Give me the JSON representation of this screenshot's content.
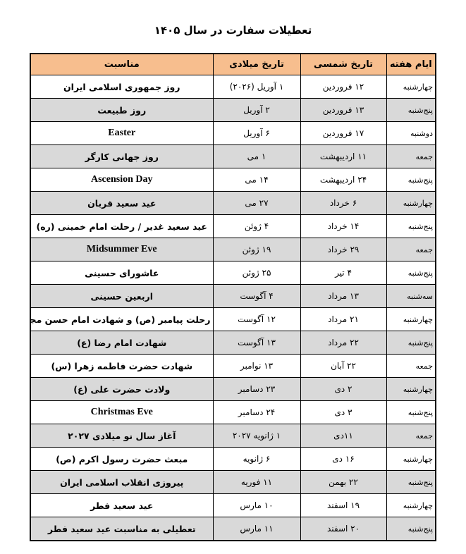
{
  "title": "تعطیلات سفارت در سال ۱۴۰۵",
  "columns": {
    "weekday": "ایام هفته",
    "shamsi": "تاریخ شمسی",
    "miladi": "تاریخ میلادی",
    "occasion": "مناسبت"
  },
  "header_color": "#f7be8e",
  "stripe_color": "#d9d9d9",
  "rows": [
    {
      "weekday": "چهارشنبه",
      "shamsi": "۱۲ فروردین",
      "miladi": "۱ آوریل (۲۰۲۶)",
      "occasion": "روز جمهوری اسلامی ایران"
    },
    {
      "weekday": "پنج‌شنبه",
      "shamsi": "۱۳ فروردین",
      "miladi": "۲ آوریل",
      "occasion": "روز طبیعت"
    },
    {
      "weekday": "دوشنبه",
      "shamsi": "۱۷ فروردین",
      "miladi": "۶ آوریل",
      "occasion": "Easter"
    },
    {
      "weekday": "جمعه",
      "shamsi": "۱۱ اردیبهشت",
      "miladi": "۱ می",
      "occasion": "روز جهانی کارگر"
    },
    {
      "weekday": "پنج‌شنبه",
      "shamsi": "۲۴ اردیبهشت",
      "miladi": "۱۴ می",
      "occasion": "Ascension Day"
    },
    {
      "weekday": "چهارشنبه",
      "shamsi": "۶ خرداد",
      "miladi": "۲۷ می",
      "occasion": "عید سعید قربان"
    },
    {
      "weekday": "پنج‌شنبه",
      "shamsi": "۱۴ خرداد",
      "miladi": "۴ ژوئن",
      "occasion": "عید سعید غدیر / رحلت امام خمینی (ره)"
    },
    {
      "weekday": "جمعه",
      "shamsi": "۲۹ خرداد",
      "miladi": "۱۹ ژوئن",
      "occasion": "Midsummer Eve"
    },
    {
      "weekday": "پنج‌شنبه",
      "shamsi": "۴ تیر",
      "miladi": "۲۵ ژوئن",
      "occasion": "عاشورای حسینی"
    },
    {
      "weekday": "سه‌شنبه",
      "shamsi": "۱۳ مرداد",
      "miladi": "۴ آگوست",
      "occasion": "اربعین حسینی"
    },
    {
      "weekday": "چهارشنبه",
      "shamsi": "۲۱ مرداد",
      "miladi": "۱۲ آگوست",
      "occasion": "رحلت پیامبر (ص) و شهادت امام حسن مجتبی (ع)"
    },
    {
      "weekday": "پنج‌شنبه",
      "shamsi": "۲۲ مرداد",
      "miladi": "۱۳ آگوست",
      "occasion": "شهادت امام رضا (ع)"
    },
    {
      "weekday": "جمعه",
      "shamsi": "۲۲ آبان",
      "miladi": "۱۳ نوامبر",
      "occasion": "شهادت حضرت فاطمه زهرا (س)"
    },
    {
      "weekday": "چهارشنبه",
      "shamsi": "۲ دی",
      "miladi": "۲۳ دسامبر",
      "occasion": "ولادت حضرت علی (ع)"
    },
    {
      "weekday": "پنج‌شنبه",
      "shamsi": "۳ دی",
      "miladi": "۲۴ دسامبر",
      "occasion": "Christmas Eve"
    },
    {
      "weekday": "جمعه",
      "shamsi": "۱۱دی",
      "miladi": "۱ ژانویه ۲۰۲۷",
      "occasion": "آغاز سال نو میلادی ۲۰۲۷"
    },
    {
      "weekday": "چهارشنبه",
      "shamsi": "۱۶ دی",
      "miladi": "۶ ژانویه",
      "occasion": "مبعث حضرت رسول اکرم (ص)"
    },
    {
      "weekday": "پنج‌شنبه",
      "shamsi": "۲۲ بهمن",
      "miladi": "۱۱ فوریه",
      "occasion": "پیروزی انقلاب اسلامی ایران"
    },
    {
      "weekday": "چهارشنبه",
      "shamsi": "۱۹ اسفند",
      "miladi": "۱۰ مارس",
      "occasion": "عید سعید فطر"
    },
    {
      "weekday": "پنج‌شنبه",
      "shamsi": "۲۰ اسفند",
      "miladi": "۱۱ مارس",
      "occasion": "تعطیلی به مناسبت عید سعید فطر"
    }
  ]
}
